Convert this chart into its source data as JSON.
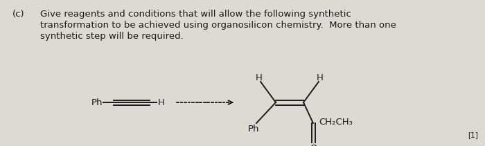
{
  "bg_color": "#ddd9d3",
  "text_color": "#1a1a1a",
  "label_c": "(c)",
  "line1": "Give reagents and conditions that will allow the following synthetic",
  "line2": "transformation to be achieved using organosilicon chemistry.  More than one",
  "line3": "synthetic step will be required.",
  "font_size_text": 9.5,
  "footnote": "[1]",
  "figw": 7.0,
  "figh": 2.11
}
